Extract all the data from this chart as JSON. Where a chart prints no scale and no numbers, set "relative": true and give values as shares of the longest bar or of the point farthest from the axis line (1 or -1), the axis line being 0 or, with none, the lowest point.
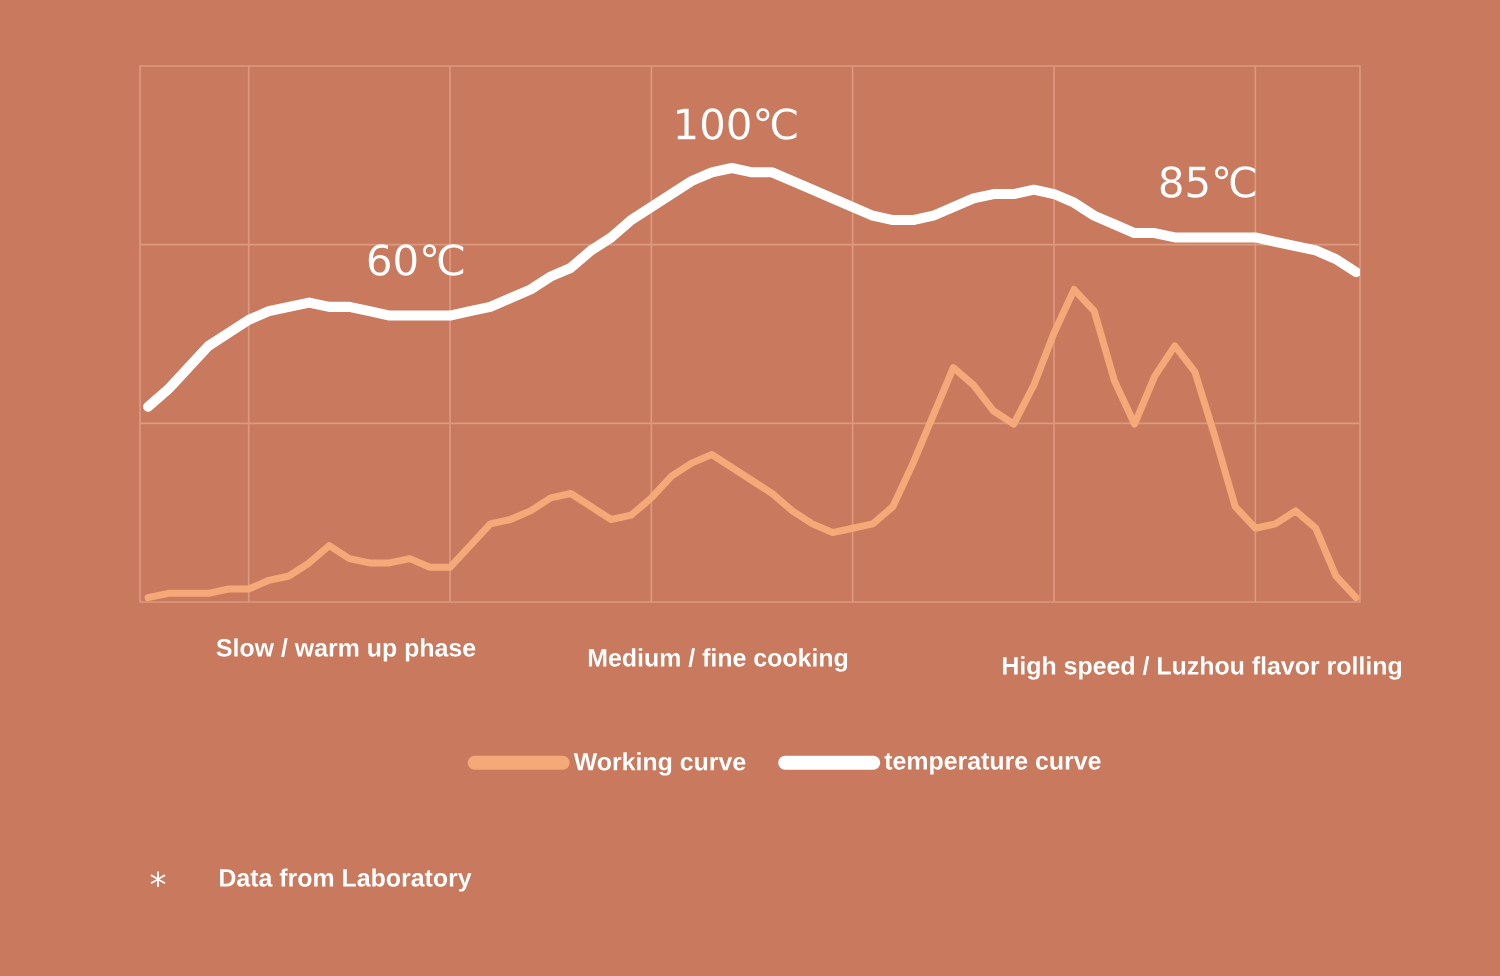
{
  "chart_data": {
    "type": "line",
    "relative": true,
    "categories": [
      null,
      null,
      null,
      null,
      null,
      null,
      null,
      null,
      null,
      null,
      null,
      null,
      null,
      null,
      null,
      null,
      null,
      null,
      null,
      null,
      null,
      null,
      null,
      null,
      null,
      null,
      null,
      null,
      null,
      null,
      null,
      null,
      null,
      null,
      null,
      null,
      null,
      null,
      null,
      null,
      null,
      null,
      null,
      null,
      null,
      null,
      null,
      null,
      null,
      null,
      null,
      null,
      null,
      null,
      null,
      null,
      null,
      null,
      null,
      null,
      null
    ],
    "series": [
      {
        "name": "Working curve",
        "color": "#f5a878",
        "values": [
          0.01,
          0.02,
          0.02,
          0.02,
          0.03,
          0.03,
          0.05,
          0.06,
          0.09,
          0.13,
          0.1,
          0.09,
          0.09,
          0.1,
          0.08,
          0.08,
          0.13,
          0.18,
          0.19,
          0.21,
          0.24,
          0.25,
          0.22,
          0.19,
          0.2,
          0.24,
          0.29,
          0.32,
          0.34,
          0.31,
          0.28,
          0.25,
          0.21,
          0.18,
          0.16,
          0.17,
          0.18,
          0.22,
          0.32,
          0.43,
          0.54,
          0.5,
          0.44,
          0.41,
          0.5,
          0.62,
          0.72,
          0.67,
          0.51,
          0.41,
          0.52,
          0.59,
          0.53,
          0.38,
          0.22,
          0.17,
          0.18,
          0.21,
          0.17,
          0.06,
          0.01
        ]
      },
      {
        "name": "temperature curve",
        "color": "#ffffff",
        "values": [
          0.45,
          0.49,
          0.54,
          0.59,
          0.62,
          0.65,
          0.67,
          0.68,
          0.69,
          0.68,
          0.68,
          0.67,
          0.66,
          0.66,
          0.66,
          0.66,
          0.67,
          0.68,
          0.7,
          0.72,
          0.75,
          0.77,
          0.81,
          0.84,
          0.88,
          0.91,
          0.94,
          0.97,
          0.99,
          1,
          0.99,
          0.99,
          0.97,
          0.95,
          0.93,
          0.91,
          0.89,
          0.88,
          0.88,
          0.89,
          0.91,
          0.93,
          0.94,
          0.94,
          0.95,
          0.94,
          0.92,
          0.89,
          0.87,
          0.85,
          0.85,
          0.84,
          0.84,
          0.84,
          0.84,
          0.84,
          0.83,
          0.82,
          0.81,
          0.79,
          0.76
        ]
      }
    ],
    "annotations": [
      "60℃",
      "100℃",
      "85℃",
      "Slow / warm up phase",
      "Medium / fine cooking",
      "High speed / Luzhou flavor rolling",
      "*",
      "Data from Laboratory"
    ],
    "grid": true,
    "legend": "bottom"
  }
}
